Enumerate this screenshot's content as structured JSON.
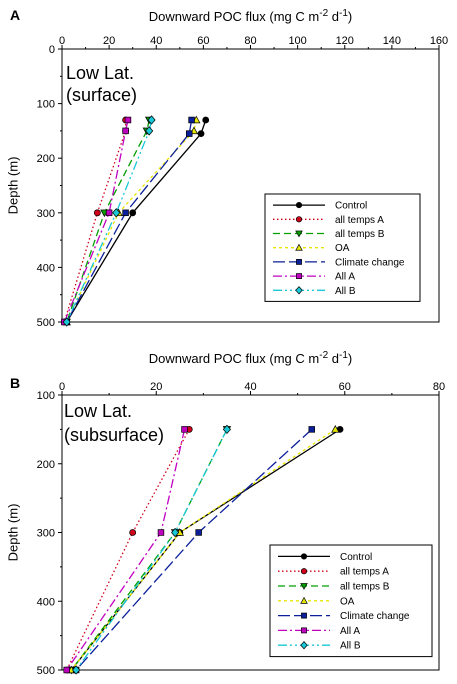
{
  "chart_data": [
    {
      "panel_label": "A",
      "type": "line",
      "title_parts": [
        "Downward POC flux (mg C m",
        "-2",
        " d",
        "-1",
        ")"
      ],
      "xlim": [
        0,
        160
      ],
      "ylim": [
        0,
        500
      ],
      "y_inverted": true,
      "x_ticks": [
        "0",
        "20",
        "40",
        "60",
        "80",
        "100",
        "120",
        "140",
        "160"
      ],
      "y_ticks": [
        "0",
        "100",
        "200",
        "300",
        "400",
        "500"
      ],
      "ylabel": "Depth (m)",
      "annotation": [
        "Low Lat.",
        "(surface)"
      ],
      "legend_position": "lower-right",
      "series": [
        {
          "name": "Control",
          "color": "#000000",
          "dash": "none",
          "marker": "circle",
          "x": [
            61,
            59,
            30,
            2
          ],
          "y": [
            130,
            155,
            300,
            500
          ]
        },
        {
          "name": "all temps A",
          "color": "#d0021b",
          "dash": "1.5,2.5",
          "marker": "circle",
          "x": [
            27,
            27,
            15,
            1
          ],
          "y": [
            130,
            150,
            300,
            500
          ]
        },
        {
          "name": "all temps B",
          "color": "#00a000",
          "dash": "7,4",
          "marker": "triangle-down",
          "x": [
            37,
            36,
            18,
            2
          ],
          "y": [
            130,
            150,
            300,
            500
          ]
        },
        {
          "name": "OA",
          "color": "#e6e600",
          "dash": "3,3",
          "marker": "triangle-up",
          "x": [
            57,
            56,
            24,
            2
          ],
          "y": [
            130,
            150,
            300,
            500
          ]
        },
        {
          "name": "Climate change",
          "color": "#0b1f9a",
          "dash": "12,4",
          "marker": "square",
          "x": [
            55,
            54,
            27,
            2
          ],
          "y": [
            130,
            155,
            300,
            500
          ]
        },
        {
          "name": "All A",
          "color": "#c000c0",
          "dash": "9,3,2,3",
          "marker": "square",
          "x": [
            28,
            27,
            20,
            1
          ],
          "y": [
            130,
            150,
            300,
            500
          ]
        },
        {
          "name": "All B",
          "color": "#19c8d6",
          "dash": "9,3,2,3,2,3",
          "marker": "diamond",
          "x": [
            38,
            37,
            23,
            2
          ],
          "y": [
            130,
            150,
            300,
            500
          ]
        }
      ]
    },
    {
      "panel_label": "B",
      "type": "line",
      "title_parts": [
        "Downward POC flux (mg C m",
        "-2",
        " d",
        "-1",
        ")"
      ],
      "xlim": [
        0,
        80
      ],
      "ylim": [
        100,
        500
      ],
      "y_inverted": true,
      "x_ticks": [
        "0",
        "20",
        "40",
        "60",
        "80"
      ],
      "y_ticks": [
        "100",
        "200",
        "300",
        "400",
        "500"
      ],
      "ylabel": "Depth (m)",
      "annotation": [
        "Low Lat.",
        "(subsurface)"
      ],
      "legend_position": "lower-right",
      "series": [
        {
          "name": "Control",
          "color": "#000000",
          "dash": "none",
          "marker": "circle",
          "x": [
            59,
            25,
            2
          ],
          "y": [
            150,
            300,
            500
          ]
        },
        {
          "name": "all temps A",
          "color": "#d0021b",
          "dash": "1.5,2.5",
          "marker": "circle",
          "x": [
            27,
            15,
            1
          ],
          "y": [
            150,
            300,
            500
          ]
        },
        {
          "name": "all temps B",
          "color": "#00a000",
          "dash": "7,4",
          "marker": "triangle-down",
          "x": [
            35,
            24,
            2
          ],
          "y": [
            150,
            300,
            500
          ]
        },
        {
          "name": "OA",
          "color": "#e6e600",
          "dash": "3,3",
          "marker": "triangle-up",
          "x": [
            58,
            25,
            2
          ],
          "y": [
            150,
            300,
            500
          ]
        },
        {
          "name": "Climate change",
          "color": "#0b1f9a",
          "dash": "12,4",
          "marker": "square",
          "x": [
            53,
            29,
            3
          ],
          "y": [
            150,
            300,
            500
          ]
        },
        {
          "name": "All A",
          "color": "#c000c0",
          "dash": "9,3,2,3",
          "marker": "square",
          "x": [
            26,
            21,
            1
          ],
          "y": [
            150,
            300,
            500
          ]
        },
        {
          "name": "All B",
          "color": "#19c8d6",
          "dash": "9,3,2,3,2,3",
          "marker": "diamond",
          "x": [
            35,
            24,
            3
          ],
          "y": [
            150,
            300,
            500
          ]
        }
      ]
    }
  ]
}
